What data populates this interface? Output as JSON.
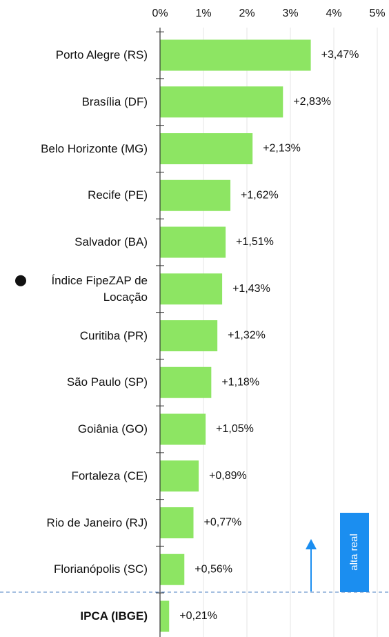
{
  "chart_data": {
    "type": "hbar",
    "categories": [
      "Porto Alegre (RS)",
      "Brasília (DF)",
      "Belo Horizonte (MG)",
      "Recife (PE)",
      "Salvador (BA)",
      "Índice FipeZAP de Locação",
      "Curitiba (PR)",
      "São Paulo (SP)",
      "Goiânia (GO)",
      "Fortaleza (CE)",
      "Rio de Janeiro (RJ)",
      "Florianópolis (SC)",
      "IPCA (IBGE)"
    ],
    "values": [
      3.47,
      2.83,
      2.13,
      1.62,
      1.51,
      1.43,
      1.32,
      1.18,
      1.05,
      0.89,
      0.77,
      0.56,
      0.21
    ],
    "value_labels": [
      "+3,47%",
      "+2,83%",
      "+2,13%",
      "+1,62%",
      "+1,51%",
      "+1,43%",
      "+1,32%",
      "+1,18%",
      "+1,05%",
      "+0,89%",
      "+0,77%",
      "+0,56%",
      "+0,21%"
    ],
    "color": "#8de563",
    "xlim": [
      0,
      5
    ],
    "xticks": [
      {
        "value": 0,
        "label": "0%"
      },
      {
        "value": 1,
        "label": "1%"
      },
      {
        "value": 2,
        "label": "2%"
      },
      {
        "value": 3,
        "label": "3%"
      },
      {
        "value": 4,
        "label": "4%"
      },
      {
        "value": 5,
        "label": "5%"
      }
    ],
    "grid": true,
    "annotation": "alta real",
    "annotation_color": "#1b8ef0"
  }
}
